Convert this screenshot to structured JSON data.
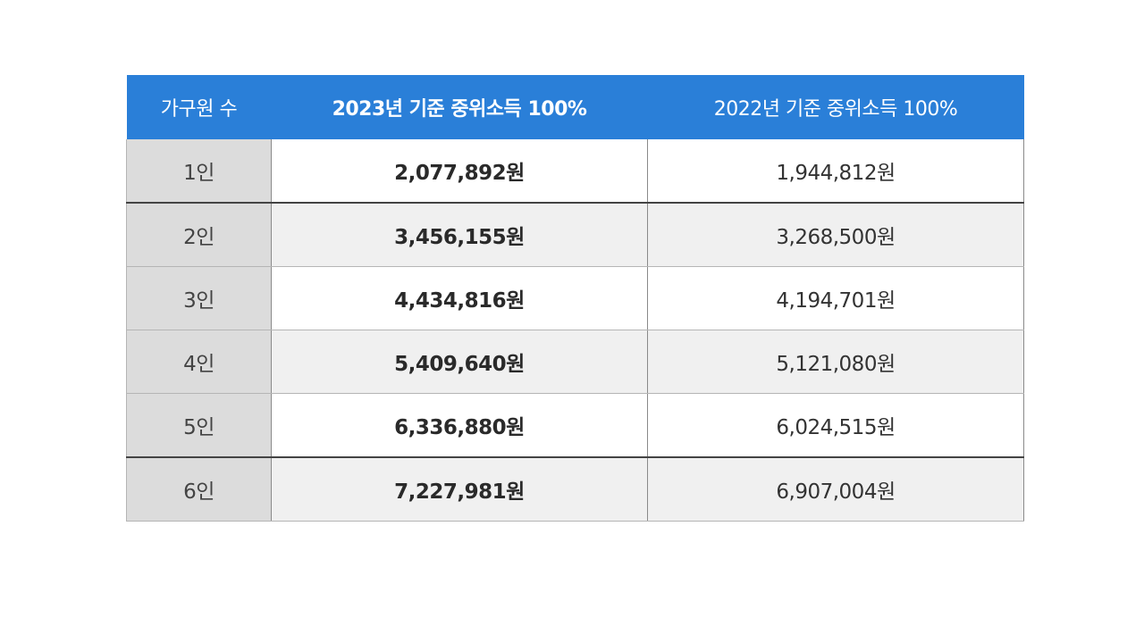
{
  "table": {
    "headers": {
      "household": "가구원 수",
      "y2023": "2023년 기준 중위소득 100%",
      "y2022": "2022년 기준 중위소득 100%"
    },
    "rows": [
      {
        "size": "1인",
        "y2023": "2,077,892원",
        "y2022": "1,944,812원"
      },
      {
        "size": "2인",
        "y2023": "3,456,155원",
        "y2022": "3,268,500원"
      },
      {
        "size": "3인",
        "y2023": "4,434,816원",
        "y2022": "4,194,701원"
      },
      {
        "size": "4인",
        "y2023": "5,409,640원",
        "y2022": "5,121,080원"
      },
      {
        "size": "5인",
        "y2023": "6,336,880원",
        "y2022": "6,024,515원"
      },
      {
        "size": "6인",
        "y2023": "7,227,981원",
        "y2022": "6,907,004원"
      }
    ]
  },
  "colors": {
    "header_bg": "#2a7fd8",
    "size_cell_bg": "#dcdcdc",
    "stripe_bg": "#f0f0f0"
  }
}
